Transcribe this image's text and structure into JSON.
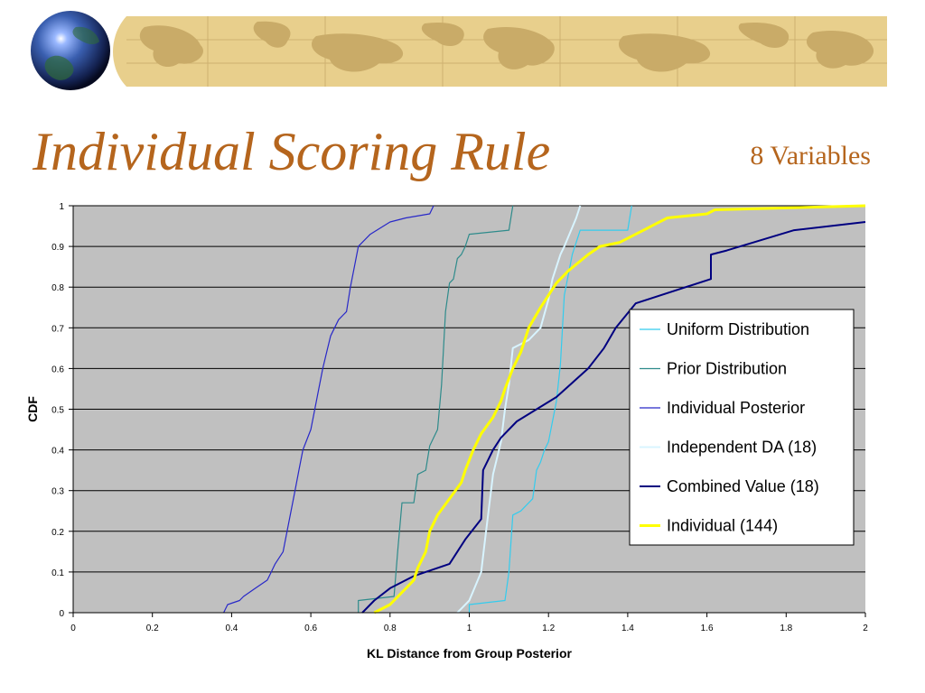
{
  "slide": {
    "title": "Individual Scoring Rule",
    "subtitle": "8 Variables"
  },
  "chart_data": {
    "type": "line",
    "xlabel": "KL Distance from Group Posterior",
    "ylabel": "CDF",
    "xlim": [
      0,
      2
    ],
    "ylim": [
      0,
      1
    ],
    "x_ticks": [
      0,
      0.2,
      0.4,
      0.6,
      0.8,
      1,
      1.2,
      1.4,
      1.6,
      1.8,
      2
    ],
    "x_tick_labels": [
      "0",
      "0.2",
      "0.4",
      "0.6",
      "0.8",
      "1",
      "1.2",
      "1.4",
      "1.6",
      "1.8",
      "2"
    ],
    "y_ticks": [
      0,
      0.1,
      0.2,
      0.3,
      0.4,
      0.5,
      0.6,
      0.7,
      0.8,
      0.9,
      1
    ],
    "y_tick_labels": [
      "0",
      "0.1",
      "0.2",
      "0.3",
      "0.4",
      "0.5",
      "0.6",
      "0.7",
      "0.8",
      "0.9",
      "1"
    ],
    "plot_background": "#c0c0c0",
    "grid": "horizontal",
    "legend_position": "right",
    "series": [
      {
        "name": "Uniform Distribution",
        "color": "#33ccee",
        "stroke": "thin",
        "points": [
          [
            1.0,
            0
          ],
          [
            1.0,
            0.02
          ],
          [
            1.09,
            0.03
          ],
          [
            1.1,
            0.1
          ],
          [
            1.11,
            0.24
          ],
          [
            1.13,
            0.25
          ],
          [
            1.16,
            0.28
          ],
          [
            1.17,
            0.35
          ],
          [
            1.18,
            0.37
          ],
          [
            1.19,
            0.4
          ],
          [
            1.2,
            0.42
          ],
          [
            1.22,
            0.52
          ],
          [
            1.23,
            0.61
          ],
          [
            1.24,
            0.78
          ],
          [
            1.25,
            0.83
          ],
          [
            1.26,
            0.88
          ],
          [
            1.28,
            0.94
          ],
          [
            1.4,
            0.94
          ],
          [
            1.41,
            1.0
          ]
        ]
      },
      {
        "name": "Prior Distribution",
        "color": "#2e8b8b",
        "stroke": "thin",
        "points": [
          [
            0.72,
            0
          ],
          [
            0.72,
            0.03
          ],
          [
            0.81,
            0.04
          ],
          [
            0.82,
            0.16
          ],
          [
            0.83,
            0.27
          ],
          [
            0.86,
            0.27
          ],
          [
            0.87,
            0.34
          ],
          [
            0.89,
            0.35
          ],
          [
            0.9,
            0.41
          ],
          [
            0.91,
            0.43
          ],
          [
            0.92,
            0.45
          ],
          [
            0.93,
            0.56
          ],
          [
            0.94,
            0.74
          ],
          [
            0.95,
            0.81
          ],
          [
            0.96,
            0.82
          ],
          [
            0.97,
            0.87
          ],
          [
            0.98,
            0.88
          ],
          [
            0.99,
            0.9
          ],
          [
            1.0,
            0.93
          ],
          [
            1.1,
            0.94
          ],
          [
            1.11,
            1.0
          ]
        ]
      },
      {
        "name": "Individual Posterior",
        "color": "#2828c8",
        "stroke": "thin",
        "points": [
          [
            0.38,
            0
          ],
          [
            0.39,
            0.02
          ],
          [
            0.42,
            0.03
          ],
          [
            0.43,
            0.04
          ],
          [
            0.46,
            0.06
          ],
          [
            0.49,
            0.08
          ],
          [
            0.5,
            0.1
          ],
          [
            0.51,
            0.12
          ],
          [
            0.53,
            0.15
          ],
          [
            0.54,
            0.2
          ],
          [
            0.55,
            0.25
          ],
          [
            0.56,
            0.3
          ],
          [
            0.57,
            0.35
          ],
          [
            0.58,
            0.4
          ],
          [
            0.6,
            0.45
          ],
          [
            0.61,
            0.5
          ],
          [
            0.62,
            0.55
          ],
          [
            0.63,
            0.6
          ],
          [
            0.64,
            0.64
          ],
          [
            0.65,
            0.68
          ],
          [
            0.67,
            0.72
          ],
          [
            0.69,
            0.74
          ],
          [
            0.7,
            0.8
          ],
          [
            0.71,
            0.85
          ],
          [
            0.72,
            0.9
          ],
          [
            0.75,
            0.93
          ],
          [
            0.8,
            0.96
          ],
          [
            0.84,
            0.97
          ],
          [
            0.9,
            0.98
          ],
          [
            0.91,
            1.0
          ]
        ]
      },
      {
        "name": "Independent DA  (18)",
        "color": "#d8f4ff",
        "stroke": "medium",
        "points": [
          [
            0.97,
            0
          ],
          [
            1.0,
            0.03
          ],
          [
            1.03,
            0.1
          ],
          [
            1.04,
            0.18
          ],
          [
            1.05,
            0.26
          ],
          [
            1.06,
            0.34
          ],
          [
            1.08,
            0.42
          ],
          [
            1.09,
            0.5
          ],
          [
            1.1,
            0.56
          ],
          [
            1.11,
            0.65
          ],
          [
            1.15,
            0.67
          ],
          [
            1.18,
            0.7
          ],
          [
            1.2,
            0.77
          ],
          [
            1.21,
            0.82
          ],
          [
            1.23,
            0.88
          ],
          [
            1.24,
            0.9
          ],
          [
            1.27,
            0.97
          ],
          [
            1.28,
            1.0
          ]
        ]
      },
      {
        "name": "Combined Value (18)",
        "color": "#000080",
        "stroke": "medium",
        "points": [
          [
            0.73,
            0
          ],
          [
            0.76,
            0.03
          ],
          [
            0.8,
            0.06
          ],
          [
            0.86,
            0.09
          ],
          [
            0.95,
            0.12
          ],
          [
            0.99,
            0.18
          ],
          [
            1.03,
            0.23
          ],
          [
            1.035,
            0.35
          ],
          [
            1.06,
            0.4
          ],
          [
            1.08,
            0.43
          ],
          [
            1.12,
            0.47
          ],
          [
            1.22,
            0.53
          ],
          [
            1.3,
            0.6
          ],
          [
            1.34,
            0.65
          ],
          [
            1.37,
            0.7
          ],
          [
            1.42,
            0.76
          ],
          [
            1.61,
            0.82
          ],
          [
            1.61,
            0.88
          ],
          [
            1.65,
            0.89
          ],
          [
            1.82,
            0.94
          ],
          [
            2.0,
            0.96
          ]
        ]
      },
      {
        "name": "Individual (144)",
        "color": "#ffff00",
        "stroke": "thick",
        "points": [
          [
            0.76,
            0
          ],
          [
            0.8,
            0.02
          ],
          [
            0.83,
            0.05
          ],
          [
            0.86,
            0.08
          ],
          [
            0.87,
            0.11
          ],
          [
            0.89,
            0.15
          ],
          [
            0.9,
            0.2
          ],
          [
            0.92,
            0.24
          ],
          [
            0.95,
            0.28
          ],
          [
            0.98,
            0.32
          ],
          [
            0.99,
            0.35
          ],
          [
            1.01,
            0.4
          ],
          [
            1.03,
            0.44
          ],
          [
            1.06,
            0.48
          ],
          [
            1.08,
            0.52
          ],
          [
            1.09,
            0.55
          ],
          [
            1.11,
            0.6
          ],
          [
            1.13,
            0.64
          ],
          [
            1.15,
            0.7
          ],
          [
            1.18,
            0.75
          ],
          [
            1.2,
            0.78
          ],
          [
            1.22,
            0.81
          ],
          [
            1.25,
            0.84
          ],
          [
            1.3,
            0.88
          ],
          [
            1.33,
            0.9
          ],
          [
            1.38,
            0.91
          ],
          [
            1.42,
            0.93
          ],
          [
            1.46,
            0.95
          ],
          [
            1.5,
            0.97
          ],
          [
            1.6,
            0.98
          ],
          [
            1.62,
            0.99
          ],
          [
            2.0,
            1.0
          ]
        ]
      }
    ]
  }
}
